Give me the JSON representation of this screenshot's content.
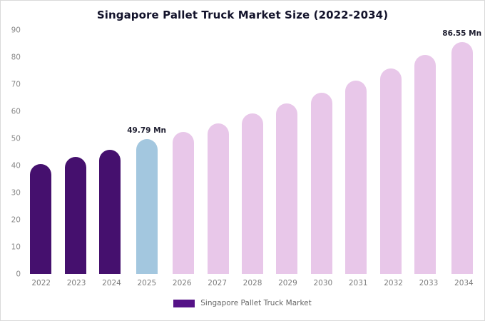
{
  "title": "Singapore Pallet Truck Market Size (2022-2034)",
  "legend": {
    "label": "Singapore Pallet Truck Market",
    "swatch_color": "#551287"
  },
  "chart_data": {
    "type": "bar",
    "title": "Singapore Pallet Truck Market Size (2022-2034)",
    "categories": [
      "2022",
      "2023",
      "2024",
      "2025",
      "2026",
      "2027",
      "2028",
      "2029",
      "2030",
      "2031",
      "2032",
      "2033",
      "2034"
    ],
    "values": [
      40.4,
      43.2,
      45.9,
      49.79,
      52.3,
      55.6,
      59.2,
      62.9,
      66.9,
      71.2,
      75.9,
      80.9,
      86.55
    ],
    "unit": "Mn",
    "bar_colors": [
      "#45106E",
      "#45106E",
      "#45106E",
      "#A3C7DF",
      "#E8C7E9",
      "#E8C7E9",
      "#E8C7E9",
      "#E8C7E9",
      "#E8C7E9",
      "#E8C7E9",
      "#E8C7E9",
      "#E8C7E9",
      "#E8C7E9"
    ],
    "annotations": [
      {
        "index": 3,
        "text": "49.79 Mn"
      },
      {
        "index": 12,
        "text": "86.55 Mn"
      }
    ],
    "xlabel": "",
    "ylabel": "",
    "ylim": [
      0,
      90
    ],
    "yticks": [
      0,
      10,
      20,
      30,
      40,
      50,
      60,
      70,
      80,
      90
    ],
    "grid": false,
    "legend_position": "bottom"
  }
}
